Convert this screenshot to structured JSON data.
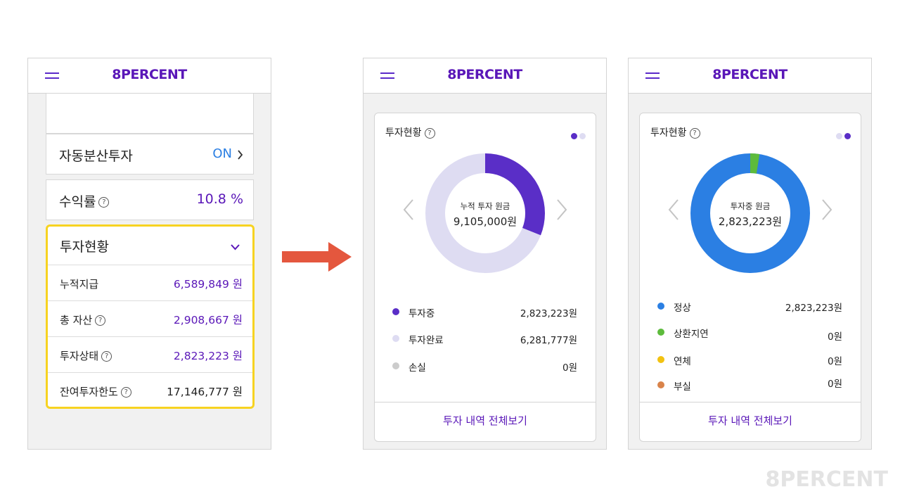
{
  "brand": "8PERCENT",
  "screen1": {
    "auto_invest": {
      "label": "자동분산투자",
      "value": "ON"
    },
    "return_rate": {
      "label": "수익률",
      "value": "10.8 %"
    },
    "investment": {
      "title": "투자현황",
      "rows": [
        {
          "label": "누적지급",
          "value": "6,589,849 원"
        },
        {
          "label": "총 자산",
          "value": "2,908,667 원"
        },
        {
          "label": "투자상태",
          "value": "2,823,223 원"
        },
        {
          "label": "잔여투자한도",
          "value": "17,146,777 원"
        }
      ]
    }
  },
  "screen2": {
    "title": "투자현황",
    "donut": {
      "center_label": "누적 투자 원금",
      "center_value": "9,105,000원"
    },
    "legend": [
      {
        "name": "투자중",
        "value": "2,823,223원",
        "color": "#5a2ec7"
      },
      {
        "name": "투자완료",
        "value": "6,281,777원",
        "color": "#dedcf2"
      },
      {
        "name": "손실",
        "value": "0원",
        "color": "#cccccc"
      }
    ],
    "footer": "투자 내역 전체보기"
  },
  "screen3": {
    "title": "투자현황",
    "donut": {
      "center_label": "투자중 원금",
      "center_value": "2,823,223원"
    },
    "legend": [
      {
        "name": "정상",
        "value": "2,823,223원",
        "color": "#2b7fe3"
      },
      {
        "name": "상환지연",
        "value": "0원",
        "color": "#5dbb3c"
      },
      {
        "name": "연체",
        "value": "0원",
        "color": "#f2c211"
      },
      {
        "name": "부실",
        "value": "0원",
        "color": "#d9834a"
      }
    ],
    "footer": "투자 내역 전체보기"
  },
  "watermark": "8PERCENT",
  "chart_data": [
    {
      "type": "pie",
      "categories": [
        "투자중",
        "투자완료",
        "손실"
      ],
      "values": [
        2823223,
        6281777,
        0
      ],
      "title": "투자현황"
    },
    {
      "type": "pie",
      "categories": [
        "정상",
        "상환지연",
        "연체",
        "부실"
      ],
      "values": [
        2823223,
        0,
        0,
        0
      ],
      "title": "투자현황"
    }
  ]
}
